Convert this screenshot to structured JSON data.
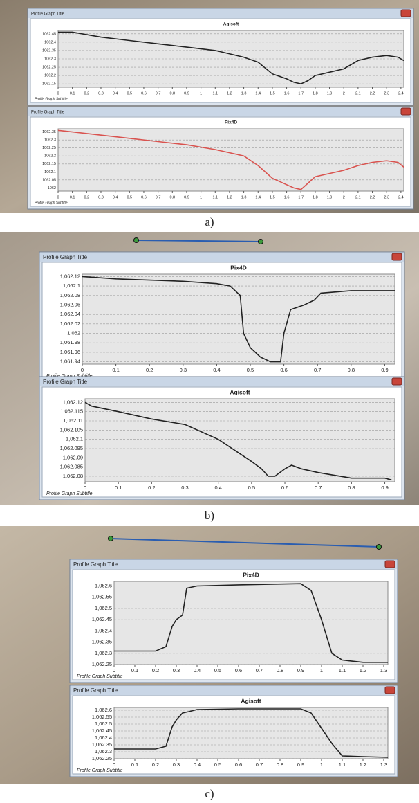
{
  "panel_labels": [
    "a)",
    "b)",
    "c)"
  ],
  "chart_data": [
    {
      "type": "line",
      "window_title": "Profile Graph Title",
      "title": "Agisoft",
      "subtitle": "Profile Graph Subtitle",
      "color": "#222222",
      "grid": true,
      "xlim": [
        0,
        2.42
      ],
      "xticks": [
        0,
        0.1,
        0.2,
        0.3,
        0.4,
        0.5,
        0.6,
        0.7,
        0.8,
        0.9,
        1,
        1.1,
        1.2,
        1.3,
        1.4,
        1.5,
        1.6,
        1.7,
        1.8,
        1.9,
        2,
        2.1,
        2.2,
        2.3,
        2.4
      ],
      "ylim": [
        1062.13,
        1062.47
      ],
      "yticks": [
        1062.45,
        1062.4,
        1062.35,
        1062.3,
        1062.25,
        1062.2,
        1062.15
      ],
      "x": [
        0,
        0.1,
        0.3,
        0.5,
        0.7,
        0.9,
        1.1,
        1.3,
        1.4,
        1.5,
        1.6,
        1.65,
        1.7,
        1.75,
        1.8,
        1.9,
        2.0,
        2.1,
        2.2,
        2.3,
        2.38,
        2.42
      ],
      "y": [
        1062.46,
        1062.46,
        1062.43,
        1062.41,
        1062.39,
        1062.37,
        1062.35,
        1062.31,
        1062.28,
        1062.21,
        1062.18,
        1062.16,
        1062.15,
        1062.17,
        1062.2,
        1062.22,
        1062.24,
        1062.29,
        1062.31,
        1062.32,
        1062.31,
        1062.29
      ]
    },
    {
      "type": "line",
      "window_title": "Profile Graph Title",
      "title": "Pix4D",
      "subtitle": "Profile Graph Subtitle",
      "color": "#d9534f",
      "grid": true,
      "xlim": [
        0,
        2.42
      ],
      "xticks": [
        0,
        0.1,
        0.2,
        0.3,
        0.4,
        0.5,
        0.6,
        0.7,
        0.8,
        0.9,
        1,
        1.1,
        1.2,
        1.3,
        1.4,
        1.5,
        1.6,
        1.7,
        1.8,
        1.9,
        2,
        2.1,
        2.2,
        2.3,
        2.4
      ],
      "ylim": [
        1061.98,
        1062.37
      ],
      "yticks": [
        1062.35,
        1062.3,
        1062.25,
        1062.2,
        1062.15,
        1062.1,
        1062.05,
        1062.0
      ],
      "x": [
        0,
        0.1,
        0.3,
        0.5,
        0.7,
        0.9,
        1.1,
        1.3,
        1.4,
        1.5,
        1.6,
        1.65,
        1.7,
        1.75,
        1.8,
        1.9,
        2.0,
        2.1,
        2.2,
        2.3,
        2.38,
        2.42
      ],
      "y": [
        1062.36,
        1062.35,
        1062.33,
        1062.31,
        1062.29,
        1062.27,
        1062.24,
        1062.2,
        1062.14,
        1062.06,
        1062.02,
        1062.0,
        1061.99,
        1062.03,
        1062.07,
        1062.09,
        1062.11,
        1062.14,
        1062.16,
        1062.17,
        1062.16,
        1062.13
      ]
    },
    {
      "type": "line",
      "window_title": "Profile Graph Title",
      "title": "Pix4D",
      "subtitle": "Profile Graph Subtitle",
      "color": "#222222",
      "grid": true,
      "xlim": [
        0,
        0.93
      ],
      "xticks": [
        0,
        0.1,
        0.2,
        0.3,
        0.4,
        0.5,
        0.6,
        0.7,
        0.8,
        0.9
      ],
      "ylim": [
        1061.935,
        1062.125
      ],
      "yticks": [
        {
          "value": 1062.12,
          "label": "1,062.12"
        },
        {
          "value": 1062.1,
          "label": "1,062.1"
        },
        {
          "value": 1062.08,
          "label": "1,062.08"
        },
        {
          "value": 1062.06,
          "label": "1,062.06"
        },
        {
          "value": 1062.04,
          "label": "1,062.04"
        },
        {
          "value": 1062.02,
          "label": "1,062.02"
        },
        {
          "value": 1062,
          "label": "1,062"
        },
        {
          "value": 1061.98,
          "label": "1,061.98"
        },
        {
          "value": 1061.96,
          "label": "1,061.96"
        },
        {
          "value": 1061.94,
          "label": "1,061.94"
        }
      ],
      "x": [
        0,
        0.1,
        0.3,
        0.4,
        0.44,
        0.47,
        0.48,
        0.5,
        0.53,
        0.56,
        0.59,
        0.6,
        0.62,
        0.66,
        0.69,
        0.71,
        0.8,
        0.93
      ],
      "y": [
        1062.12,
        1062.115,
        1062.11,
        1062.105,
        1062.1,
        1062.08,
        1062.0,
        1061.97,
        1061.95,
        1061.94,
        1061.94,
        1062.0,
        1062.05,
        1062.06,
        1062.07,
        1062.085,
        1062.09,
        1062.09
      ]
    },
    {
      "type": "line",
      "window_title": "Profile Graph Title",
      "title": "Agisoft",
      "subtitle": "Profile Graph Subtitle",
      "color": "#222222",
      "grid": true,
      "xlim": [
        0,
        0.93
      ],
      "xticks": [
        0,
        0.1,
        0.2,
        0.3,
        0.4,
        0.5,
        0.6,
        0.7,
        0.8,
        0.9
      ],
      "ylim": [
        1062.077,
        1062.122
      ],
      "yticks": [
        {
          "value": 1062.12,
          "label": "1,062.12"
        },
        {
          "value": 1062.115,
          "label": "1,062.115"
        },
        {
          "value": 1062.11,
          "label": "1,062.11"
        },
        {
          "value": 1062.105,
          "label": "1,062.105"
        },
        {
          "value": 1062.1,
          "label": "1,062.1"
        },
        {
          "value": 1062.095,
          "label": "1,062.095"
        },
        {
          "value": 1062.09,
          "label": "1,062.09"
        },
        {
          "value": 1062.085,
          "label": "1,062.085"
        },
        {
          "value": 1062.08,
          "label": "1,062.08"
        }
      ],
      "x": [
        0,
        0.02,
        0.1,
        0.2,
        0.3,
        0.4,
        0.45,
        0.5,
        0.53,
        0.55,
        0.57,
        0.6,
        0.62,
        0.65,
        0.7,
        0.8,
        0.9,
        0.92
      ],
      "y": [
        1062.12,
        1062.118,
        1062.115,
        1062.111,
        1062.108,
        1062.1,
        1062.094,
        1062.088,
        1062.084,
        1062.08,
        1062.08,
        1062.084,
        1062.086,
        1062.084,
        1062.082,
        1062.079,
        1062.079,
        1062.078
      ]
    },
    {
      "type": "line",
      "window_title": "Profile Graph Title",
      "title": "Pix4D",
      "subtitle": "Profile Graph Subtitle",
      "color": "#222222",
      "grid": true,
      "xlim": [
        0,
        1.32
      ],
      "xticks": [
        0,
        0.1,
        0.2,
        0.3,
        0.4,
        0.5,
        0.6,
        0.7,
        0.8,
        0.9,
        1,
        1.1,
        1.2,
        1.3
      ],
      "ylim": [
        1062.25,
        1062.62
      ],
      "yticks": [
        {
          "value": 1062.6,
          "label": "1,062.6"
        },
        {
          "value": 1062.55,
          "label": "1,062.55"
        },
        {
          "value": 1062.5,
          "label": "1,062.5"
        },
        {
          "value": 1062.45,
          "label": "1,062.45"
        },
        {
          "value": 1062.4,
          "label": "1,062.4"
        },
        {
          "value": 1062.35,
          "label": "1,062.35"
        },
        {
          "value": 1062.3,
          "label": "1,062.3"
        },
        {
          "value": 1062.25,
          "label": "1,062.25"
        }
      ],
      "x": [
        0,
        0.2,
        0.25,
        0.28,
        0.3,
        0.33,
        0.35,
        0.4,
        0.6,
        0.9,
        0.95,
        1.0,
        1.05,
        1.1,
        1.2,
        1.32
      ],
      "y": [
        1062.31,
        1062.31,
        1062.33,
        1062.42,
        1062.45,
        1062.47,
        1062.59,
        1062.6,
        1062.605,
        1062.61,
        1062.58,
        1062.45,
        1062.3,
        1062.27,
        1062.26,
        1062.26
      ]
    },
    {
      "type": "line",
      "window_title": "Profile Graph Title",
      "title": "Agisoft",
      "subtitle": "Profile Graph Subtitle",
      "color": "#222222",
      "grid": true,
      "xlim": [
        0,
        1.32
      ],
      "xticks": [
        0,
        0.1,
        0.2,
        0.3,
        0.4,
        0.5,
        0.6,
        0.7,
        0.8,
        0.9,
        1,
        1.1,
        1.2,
        1.3
      ],
      "ylim": [
        1062.25,
        1062.62
      ],
      "yticks": [
        {
          "value": 1062.6,
          "label": "1,062.6"
        },
        {
          "value": 1062.55,
          "label": "1,062.55"
        },
        {
          "value": 1062.5,
          "label": "1,062.5"
        },
        {
          "value": 1062.45,
          "label": "1,062.45"
        },
        {
          "value": 1062.4,
          "label": "1,062.4"
        },
        {
          "value": 1062.35,
          "label": "1,062.35"
        },
        {
          "value": 1062.3,
          "label": "1,062.3"
        },
        {
          "value": 1062.25,
          "label": "1,062.25"
        }
      ],
      "x": [
        0,
        0.2,
        0.25,
        0.28,
        0.3,
        0.33,
        0.36,
        0.4,
        0.6,
        0.9,
        0.95,
        1.0,
        1.05,
        1.1,
        1.2,
        1.32
      ],
      "y": [
        1062.32,
        1062.32,
        1062.34,
        1062.48,
        1062.53,
        1062.58,
        1062.59,
        1062.605,
        1062.61,
        1062.61,
        1062.58,
        1062.47,
        1062.36,
        1062.27,
        1062.265,
        1062.26
      ]
    }
  ]
}
